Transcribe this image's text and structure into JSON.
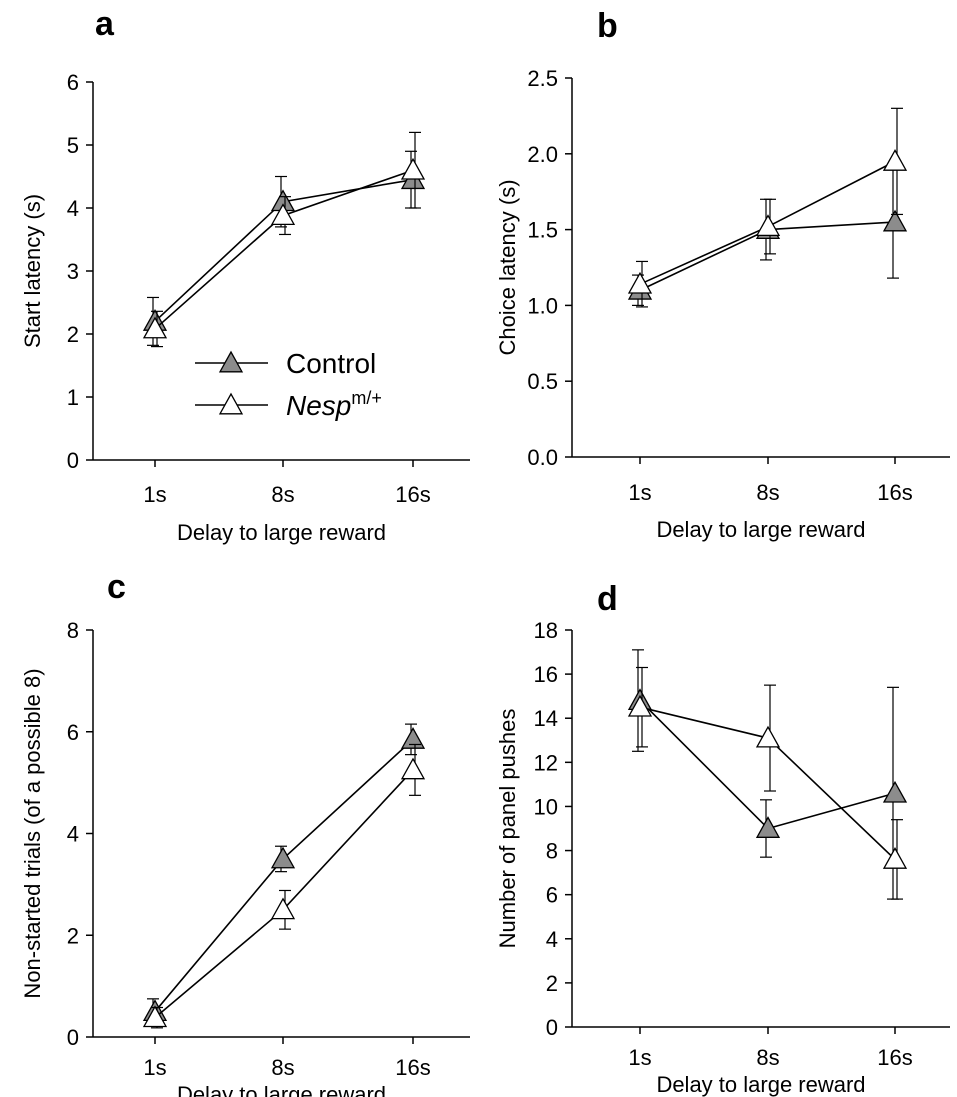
{
  "chart_data": [
    {
      "panel": "a",
      "type": "line",
      "categories": [
        "1s",
        "8s",
        "16s"
      ],
      "xlabel": "Delay to large reward",
      "ylabel": "Start latency (s)",
      "ylim": [
        0,
        6
      ],
      "yticks": [
        "0",
        "1",
        "2",
        "3",
        "4",
        "5",
        "6"
      ],
      "legend": {
        "placement": "center-left"
      },
      "series": [
        {
          "name": "Control",
          "marker": "filled-triangle",
          "values": [
            2.2,
            4.1,
            4.45
          ],
          "errors": [
            0.38,
            0.4,
            0.45
          ]
        },
        {
          "name": "Nesp",
          "name_superscript": "m/+",
          "marker": "open-triangle",
          "values": [
            2.08,
            3.88,
            4.6
          ],
          "errors": [
            0.28,
            0.3,
            0.6
          ]
        }
      ]
    },
    {
      "panel": "b",
      "type": "line",
      "categories": [
        "1s",
        "8s",
        "16s"
      ],
      "xlabel": "Delay to large reward",
      "ylabel": "Choice latency (s)",
      "ylim": [
        0,
        2.5
      ],
      "yticks": [
        "0.0",
        "0.5",
        "1.0",
        "1.5",
        "2.0",
        "2.5"
      ],
      "series": [
        {
          "name": "Control",
          "marker": "filled-triangle",
          "values": [
            1.1,
            1.5,
            1.55
          ],
          "errors": [
            0.1,
            0.2,
            0.37
          ]
        },
        {
          "name": "Nesp",
          "marker": "open-triangle",
          "values": [
            1.14,
            1.52,
            1.95
          ],
          "errors": [
            0.15,
            0.18,
            0.35
          ]
        }
      ]
    },
    {
      "panel": "c",
      "type": "line",
      "categories": [
        "1s",
        "8s",
        "16s"
      ],
      "xlabel": "Delay to large reward",
      "ylabel": "Non-started trials (of a possible 8)",
      "ylim": [
        0,
        8
      ],
      "yticks": [
        "0",
        "2",
        "4",
        "6",
        "8"
      ],
      "series": [
        {
          "name": "Control",
          "marker": "filled-triangle",
          "values": [
            0.5,
            3.5,
            5.85
          ],
          "errors": [
            0.25,
            0.25,
            0.3
          ]
        },
        {
          "name": "Nesp",
          "marker": "open-triangle",
          "values": [
            0.38,
            2.5,
            5.25
          ],
          "errors": [
            0.2,
            0.38,
            0.5
          ]
        }
      ]
    },
    {
      "panel": "d",
      "type": "line",
      "categories": [
        "1s",
        "8s",
        "16s"
      ],
      "xlabel": "Delay to large reward",
      "ylabel": "Number of panel pushes",
      "ylim": [
        0,
        18
      ],
      "yticks": [
        "0",
        "2",
        "4",
        "6",
        "8",
        "10",
        "12",
        "14",
        "16",
        "18"
      ],
      "series": [
        {
          "name": "Control",
          "marker": "filled-triangle",
          "values": [
            14.8,
            9.0,
            10.6
          ],
          "errors": [
            2.3,
            1.3,
            4.8
          ]
        },
        {
          "name": "Nesp",
          "marker": "open-triangle",
          "values": [
            14.5,
            13.1,
            7.6
          ],
          "errors": [
            1.8,
            2.4,
            1.8
          ]
        }
      ]
    }
  ],
  "colors": {
    "control_fill": "#8c8c8c",
    "nesp_fill": "#ffffff",
    "line": "#000000"
  }
}
